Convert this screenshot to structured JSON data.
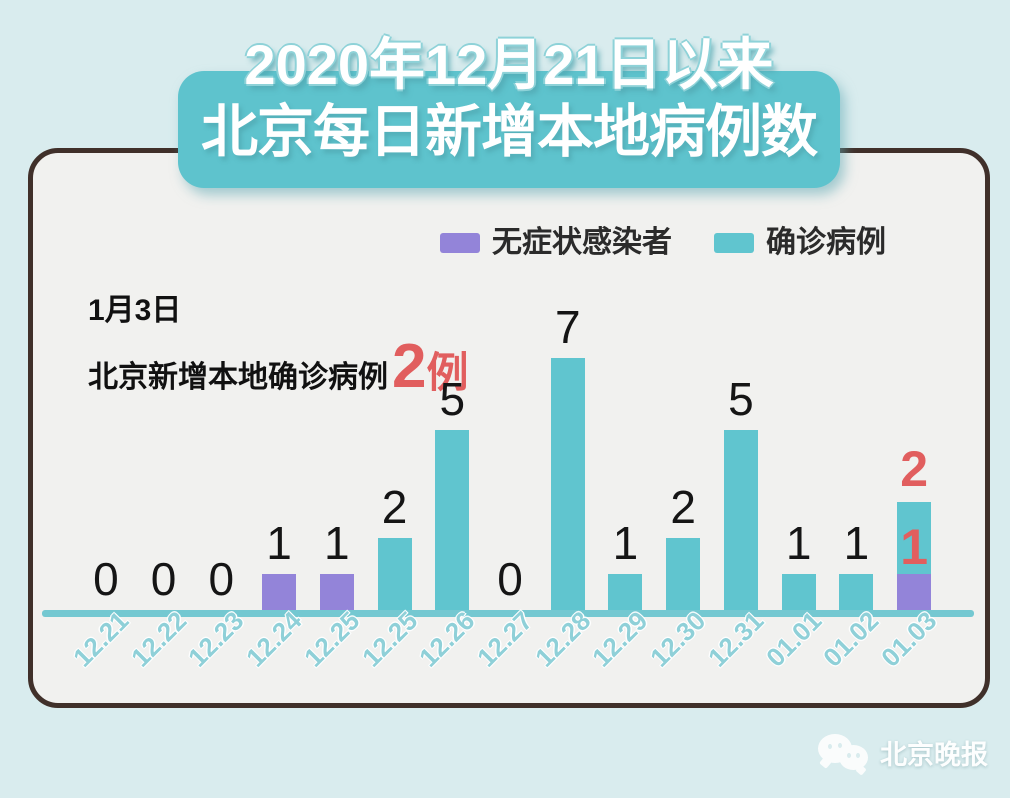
{
  "title": {
    "line1": "2020年12月21日以来",
    "line2": "北京每日新增本地病例数"
  },
  "legend": {
    "items": [
      {
        "label": "无症状感染者",
        "color": "#9384d9"
      },
      {
        "label": "确诊病例",
        "color": "#60c5cf"
      }
    ]
  },
  "annotation": {
    "date_line": "1月3日",
    "text": "北京新增本地确诊病例",
    "value": "2",
    "unit": "例",
    "value_color": "#e15e5e"
  },
  "watermark": {
    "icon": "wechat-icon",
    "source_name": "北京晚报"
  },
  "colors": {
    "background": "#d9ecee",
    "card_background": "#f1f1ef",
    "card_border": "#40302a",
    "badge": "#5ec3cd",
    "axis": "#74c8d1",
    "x_label": "#8fd0d8",
    "value_label": "#151515",
    "highlight": "#e15e5e"
  },
  "chart_data": {
    "type": "bar",
    "stacked": true,
    "title": "2020年12月21日以来北京每日新增本地病例数",
    "xlabel": "",
    "ylabel": "",
    "ylim": [
      0,
      8
    ],
    "grid": false,
    "legend_position": "top",
    "x": [
      "12.21",
      "12.22",
      "12.23",
      "12.24",
      "12.25",
      "12.25",
      "12.26",
      "12.27",
      "12.28",
      "12.29",
      "12.30",
      "12.31",
      "01.01",
      "01.02",
      "01.03"
    ],
    "series": [
      {
        "name": "无症状感染者",
        "color": "#9384d9",
        "values": [
          0,
          0,
          0,
          1,
          1,
          0,
          0,
          0,
          0,
          0,
          0,
          0,
          0,
          0,
          1
        ]
      },
      {
        "name": "确诊病例",
        "color": "#60c5cf",
        "values": [
          0,
          0,
          0,
          0,
          0,
          2,
          5,
          0,
          7,
          1,
          2,
          5,
          1,
          1,
          2
        ]
      }
    ],
    "bar_labels": [
      "0",
      "0",
      "0",
      "1",
      "1",
      "2",
      "5",
      "0",
      "7",
      "1",
      "2",
      "5",
      "1",
      "1",
      ""
    ],
    "highlight_labels": {
      "index": 14,
      "confirmed": "2",
      "asymptomatic": "1",
      "color": "#e15e5e"
    }
  }
}
